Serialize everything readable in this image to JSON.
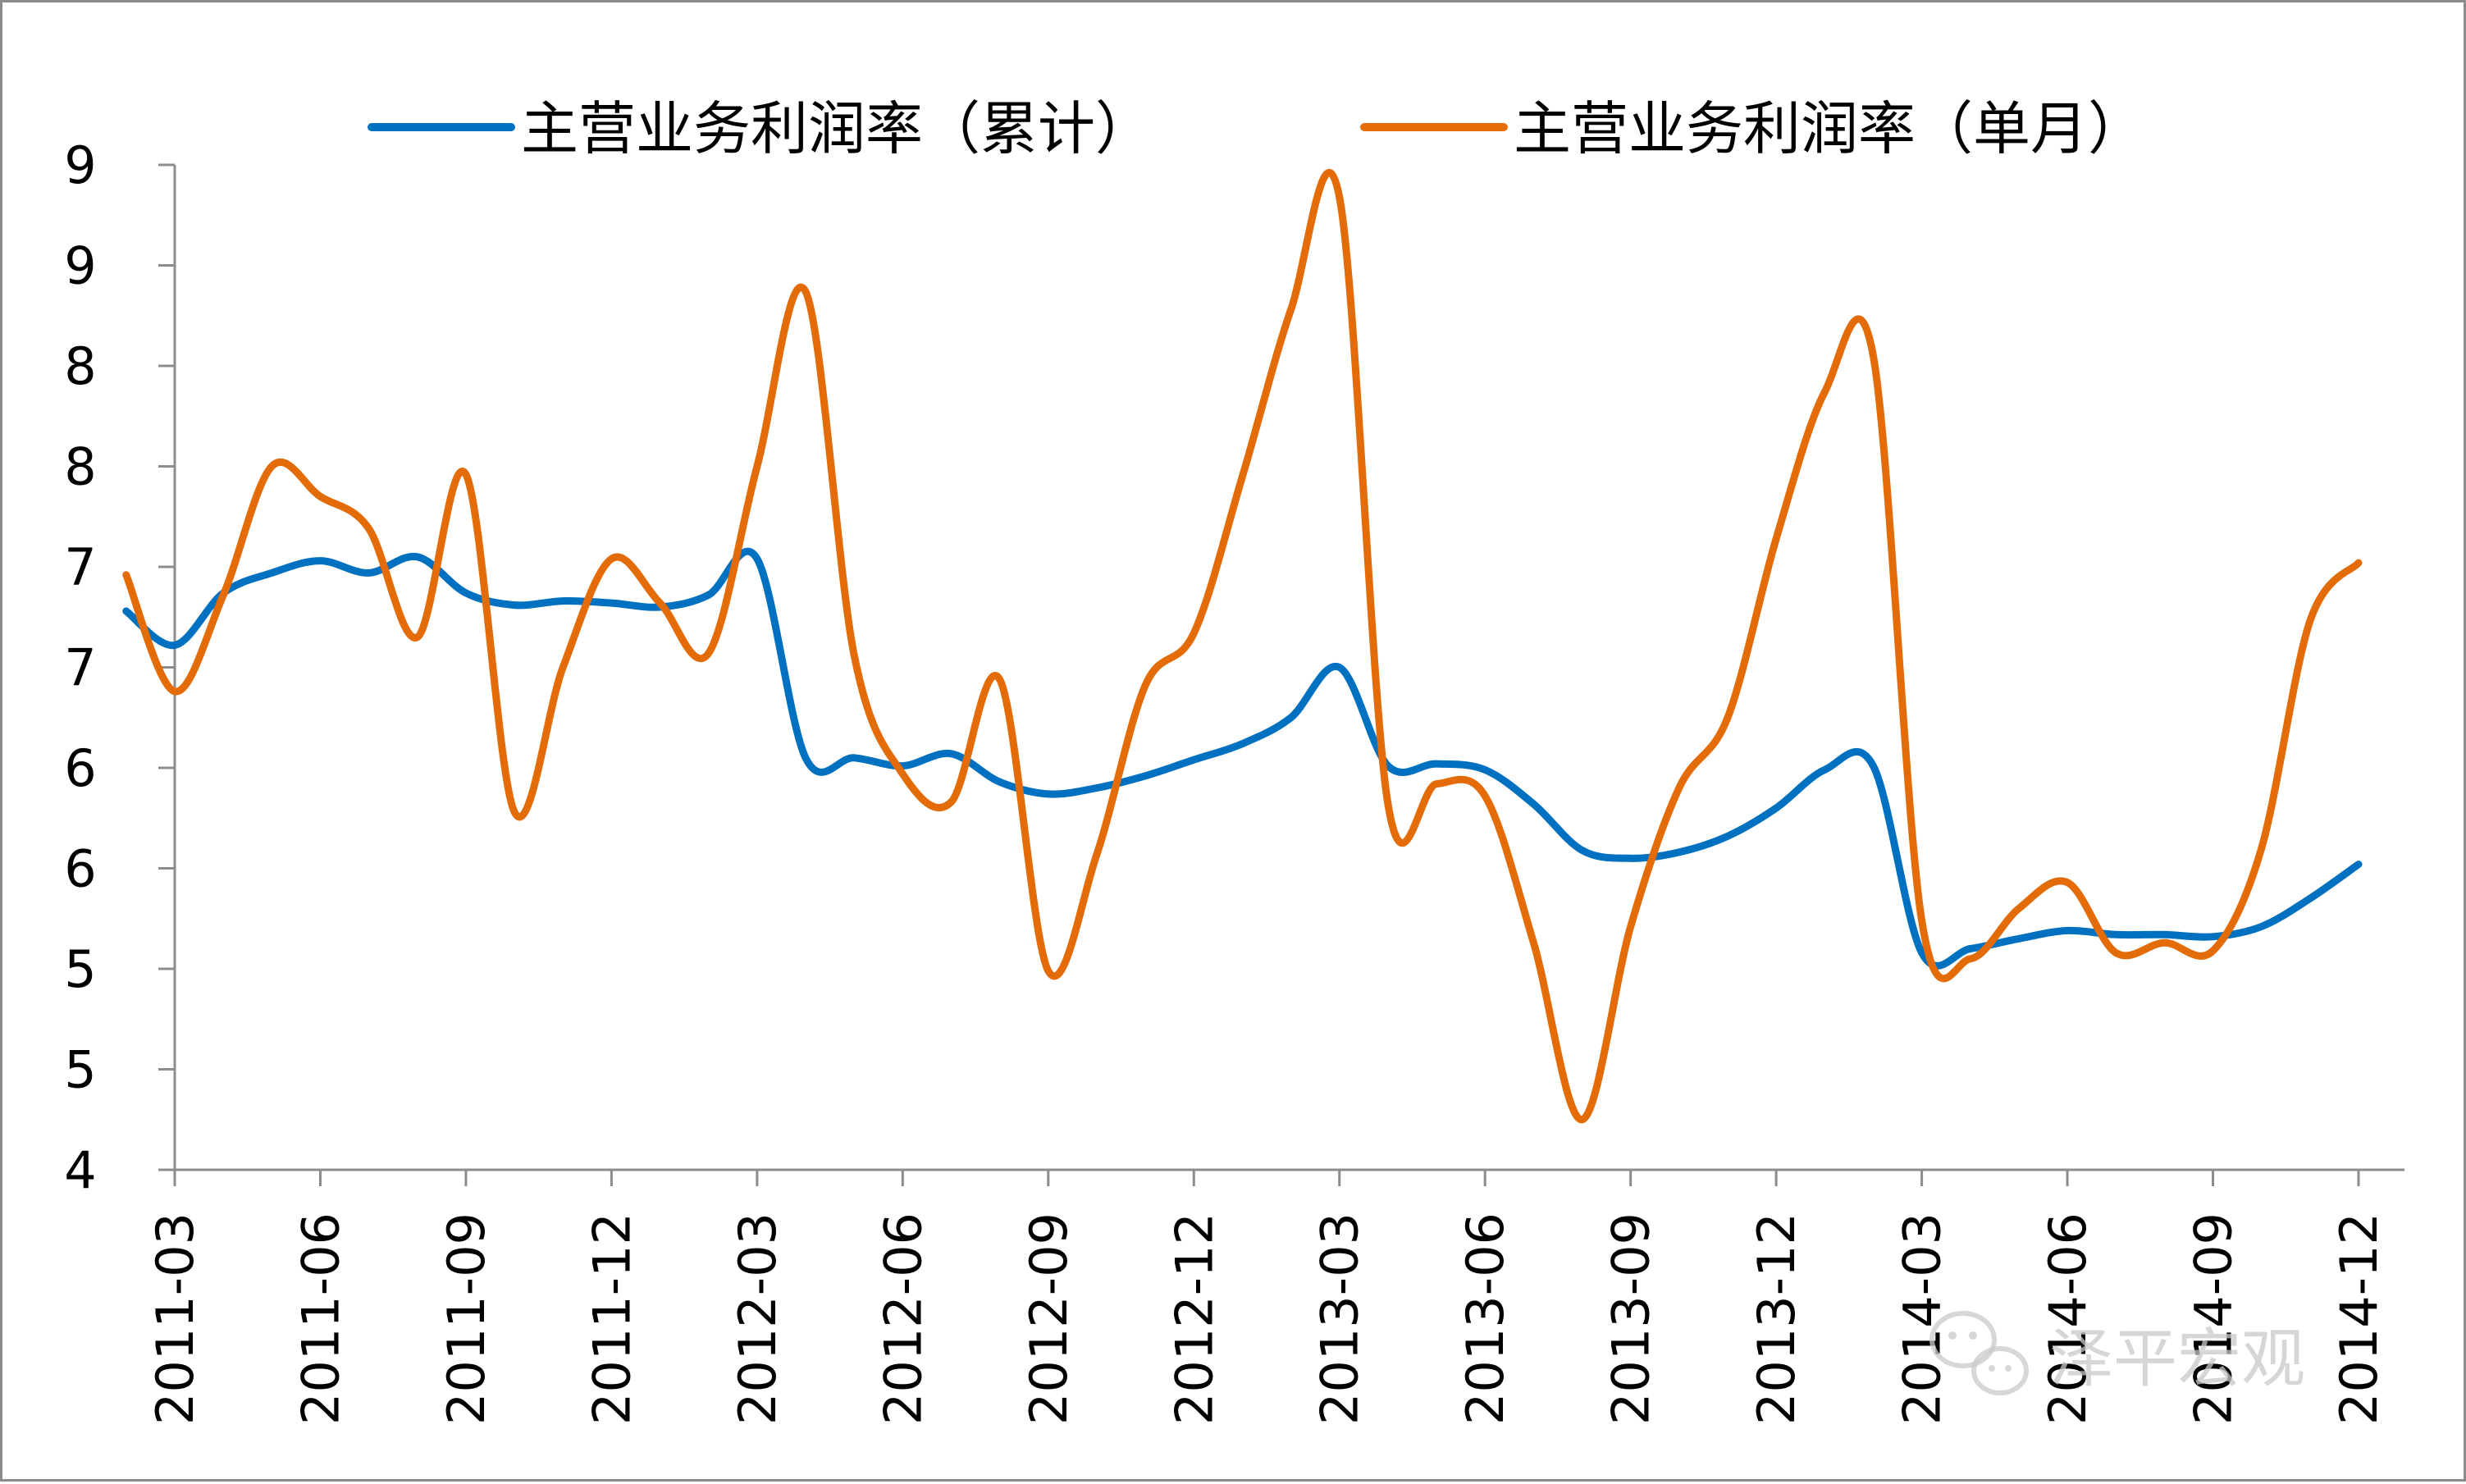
{
  "chart_data": {
    "type": "line",
    "title": "",
    "xlabel": "",
    "ylabel": "",
    "y_tick_labels": [
      "4",
      "5",
      "5",
      "6",
      "6",
      "7",
      "7",
      "8",
      "8",
      "9",
      "9"
    ],
    "ylim": [
      4,
      9
    ],
    "x_tick_labels": [
      "2011-03",
      "2011-06",
      "2011-09",
      "2011-12",
      "2012-03",
      "2012-06",
      "2012-09",
      "2012-12",
      "2013-03",
      "2013-06",
      "2013-09",
      "2013-12",
      "2014-03",
      "2014-06",
      "2014-09",
      "2014-12"
    ],
    "grid": false,
    "legend_position": "top",
    "series": [
      {
        "name": "主营业务利润率（累计）",
        "color": "#0070C0",
        "points": [
          [
            "2011-02",
            6.78
          ],
          [
            "2011-03",
            6.61
          ],
          [
            "2011-04",
            6.87
          ],
          [
            "2011-05",
            6.97
          ],
          [
            "2011-06",
            7.03
          ],
          [
            "2011-07",
            6.97
          ],
          [
            "2011-08",
            7.05
          ],
          [
            "2011-09",
            6.87
          ],
          [
            "2011-10",
            6.81
          ],
          [
            "2011-11",
            6.83
          ],
          [
            "2011-12",
            6.82
          ],
          [
            "2012-01",
            6.8
          ],
          [
            "2012-02",
            6.86
          ],
          [
            "2012-03",
            7.04
          ],
          [
            "2012-04",
            6.05
          ],
          [
            "2012-05",
            6.05
          ],
          [
            "2012-06",
            6.01
          ],
          [
            "2012-07",
            6.07
          ],
          [
            "2012-08",
            5.93
          ],
          [
            "2012-09",
            5.87
          ],
          [
            "2012-10",
            5.9
          ],
          [
            "2012-11",
            5.96
          ],
          [
            "2012-12",
            6.04
          ],
          [
            "2013-01",
            6.12
          ],
          [
            "2013-02",
            6.25
          ],
          [
            "2013-03",
            6.5
          ],
          [
            "2013-04",
            6.01
          ],
          [
            "2013-05",
            6.02
          ],
          [
            "2013-06",
            5.99
          ],
          [
            "2013-07",
            5.82
          ],
          [
            "2013-08",
            5.59
          ],
          [
            "2013-09",
            5.55
          ],
          [
            "2013-10",
            5.58
          ],
          [
            "2013-11",
            5.66
          ],
          [
            "2013-12",
            5.8
          ],
          [
            "2014-01",
            5.99
          ],
          [
            "2014-02",
            6.01
          ],
          [
            "2014-03",
            5.08
          ],
          [
            "2014-04",
            5.1
          ],
          [
            "2014-05",
            5.15
          ],
          [
            "2014-06",
            5.19
          ],
          [
            "2014-07",
            5.17
          ],
          [
            "2014-08",
            5.17
          ],
          [
            "2014-09",
            5.16
          ],
          [
            "2014-10",
            5.21
          ],
          [
            "2014-11",
            5.35
          ],
          [
            "2014-12",
            5.52
          ]
        ]
      },
      {
        "name": "主营业务利润率（单月）",
        "color": "#E36C09",
        "points": [
          [
            "2011-02",
            6.96
          ],
          [
            "2011-03",
            6.38
          ],
          [
            "2011-04",
            6.86
          ],
          [
            "2011-05",
            7.5
          ],
          [
            "2011-06",
            7.35
          ],
          [
            "2011-07",
            7.19
          ],
          [
            "2011-08",
            6.65
          ],
          [
            "2011-09",
            7.46
          ],
          [
            "2011-10",
            5.78
          ],
          [
            "2011-11",
            6.5
          ],
          [
            "2011-12",
            7.04
          ],
          [
            "2012-01",
            6.82
          ],
          [
            "2012-02",
            6.57
          ],
          [
            "2012-03",
            7.5
          ],
          [
            "2012-04",
            8.37
          ],
          [
            "2012-05",
            6.56
          ],
          [
            "2012-06",
            5.97
          ],
          [
            "2012-07",
            5.83
          ],
          [
            "2012-08",
            6.44
          ],
          [
            "2012-09",
            4.99
          ],
          [
            "2012-10",
            5.57
          ],
          [
            "2012-11",
            6.41
          ],
          [
            "2012-12",
            6.67
          ],
          [
            "2013-01",
            7.45
          ],
          [
            "2013-02",
            8.28
          ],
          [
            "2013-03",
            8.84
          ],
          [
            "2013-04",
            5.82
          ],
          [
            "2013-05",
            5.92
          ],
          [
            "2013-06",
            5.86
          ],
          [
            "2013-07",
            5.13
          ],
          [
            "2013-08",
            4.25
          ],
          [
            "2013-09",
            5.21
          ],
          [
            "2013-10",
            5.9
          ],
          [
            "2013-11",
            6.25
          ],
          [
            "2013-12",
            7.14
          ],
          [
            "2014-01",
            7.87
          ],
          [
            "2014-02",
            8.05
          ],
          [
            "2014-03",
            5.24
          ],
          [
            "2014-04",
            5.05
          ],
          [
            "2014-05",
            5.3
          ],
          [
            "2014-06",
            5.43
          ],
          [
            "2014-07",
            5.08
          ],
          [
            "2014-08",
            5.13
          ],
          [
            "2014-09",
            5.09
          ],
          [
            "2014-10",
            5.6
          ],
          [
            "2014-11",
            6.73
          ],
          [
            "2014-12",
            7.02
          ]
        ]
      }
    ]
  },
  "watermark": {
    "text": "泽平宏观",
    "icon": "wechat-icon"
  }
}
